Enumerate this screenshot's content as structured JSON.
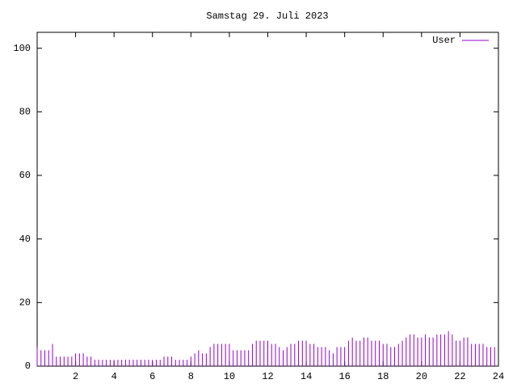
{
  "chart_data": {
    "type": "impulses",
    "title": "Samstag 29. Juli 2023",
    "x": [
      0,
      0.2,
      0.4,
      0.6,
      0.8,
      1,
      1.2,
      1.4,
      1.6,
      1.8,
      2,
      2.2,
      2.4,
      2.6,
      2.8,
      3,
      3.2,
      3.4,
      3.6,
      3.8,
      4,
      4.2,
      4.4,
      4.6,
      4.8,
      5,
      5.2,
      5.4,
      5.6,
      5.8,
      6,
      6.2,
      6.4,
      6.6,
      6.8,
      7,
      7.2,
      7.4,
      7.6,
      7.8,
      8,
      8.2,
      8.4,
      8.6,
      8.8,
      9,
      9.2,
      9.4,
      9.6,
      9.8,
      10,
      10.2,
      10.4,
      10.6,
      10.8,
      11,
      11.2,
      11.4,
      11.6,
      11.8,
      12,
      12.2,
      12.4,
      12.6,
      12.8,
      13,
      13.2,
      13.4,
      13.6,
      13.8,
      14,
      14.2,
      14.4,
      14.6,
      14.8,
      15,
      15.2,
      15.4,
      15.6,
      15.8,
      16,
      16.2,
      16.4,
      16.6,
      16.8,
      17,
      17.2,
      17.4,
      17.6,
      17.8,
      18,
      18.2,
      18.4,
      18.6,
      18.8,
      19,
      19.2,
      19.4,
      19.6,
      19.8,
      20,
      20.2,
      20.4,
      20.6,
      20.8,
      21,
      21.2,
      21.4,
      21.6,
      21.8,
      22,
      22.2,
      22.4,
      22.6,
      22.8,
      23,
      23.2,
      23.4,
      23.6,
      23.8
    ],
    "series": [
      {
        "name": "User",
        "color": "#9400d3",
        "values": [
          6,
          5,
          5,
          5,
          7,
          3,
          3,
          3,
          3,
          3,
          4,
          4,
          4,
          3,
          3,
          2,
          2,
          2,
          2,
          2,
          2,
          2,
          2,
          2,
          2,
          2,
          2,
          2,
          2,
          2,
          2,
          2,
          2,
          3,
          3,
          3,
          2,
          2,
          2,
          2,
          3,
          4,
          5,
          4,
          4,
          6,
          7,
          7,
          7,
          7,
          7,
          5,
          5,
          5,
          5,
          5,
          7,
          8,
          8,
          8,
          8,
          7,
          7,
          6,
          5,
          6,
          7,
          7,
          8,
          8,
          8,
          7,
          7,
          6,
          6,
          6,
          5,
          4,
          6,
          6,
          6,
          8,
          9,
          8,
          8,
          9,
          9,
          8,
          8,
          8,
          7,
          7,
          6,
          6,
          7,
          8,
          9,
          10,
          10,
          9,
          9,
          10,
          9,
          9,
          10,
          10,
          10,
          11,
          10,
          8,
          8,
          9,
          9,
          7,
          7,
          7,
          7,
          6,
          6,
          6
        ]
      }
    ],
    "xlim": [
      0,
      24
    ],
    "xticks": [
      2,
      4,
      6,
      8,
      10,
      12,
      14,
      16,
      18,
      20,
      22,
      24
    ],
    "ylim": [
      0,
      105
    ],
    "yticks": [
      0,
      20,
      40,
      60,
      80,
      100
    ],
    "legend": "top-right"
  }
}
